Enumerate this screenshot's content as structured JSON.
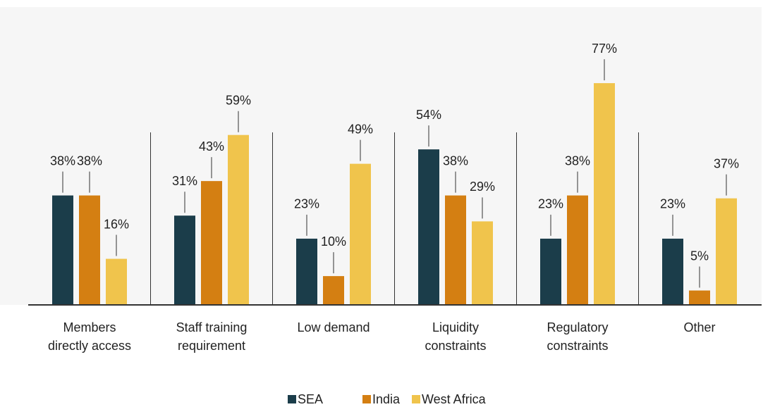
{
  "chart_data": {
    "type": "bar",
    "categories": [
      "Members\ndirectly access",
      "Staff training\nrequirement",
      "Low demand",
      "Liquidity\nconstraints",
      "Regulatory\nconstraints",
      "Other"
    ],
    "series": [
      {
        "name": "SEA",
        "color": "#1b3d4a",
        "values": [
          38,
          31,
          23,
          54,
          23,
          23
        ],
        "value_labels": [
          "38%",
          "31%",
          "23%",
          "54%",
          "23%",
          "23%"
        ]
      },
      {
        "name": "India",
        "color": "#d47f12",
        "values": [
          38,
          43,
          10,
          38,
          38,
          5
        ],
        "value_labels": [
          "38%",
          "43%",
          "10%",
          "38%",
          "38%",
          "5%"
        ]
      },
      {
        "name": "West Africa",
        "color": "#f0c44c",
        "values": [
          16,
          59,
          49,
          29,
          77,
          37
        ],
        "value_labels": [
          "16%",
          "59%",
          "49%",
          "29%",
          "77%",
          "37%"
        ]
      }
    ]
  }
}
